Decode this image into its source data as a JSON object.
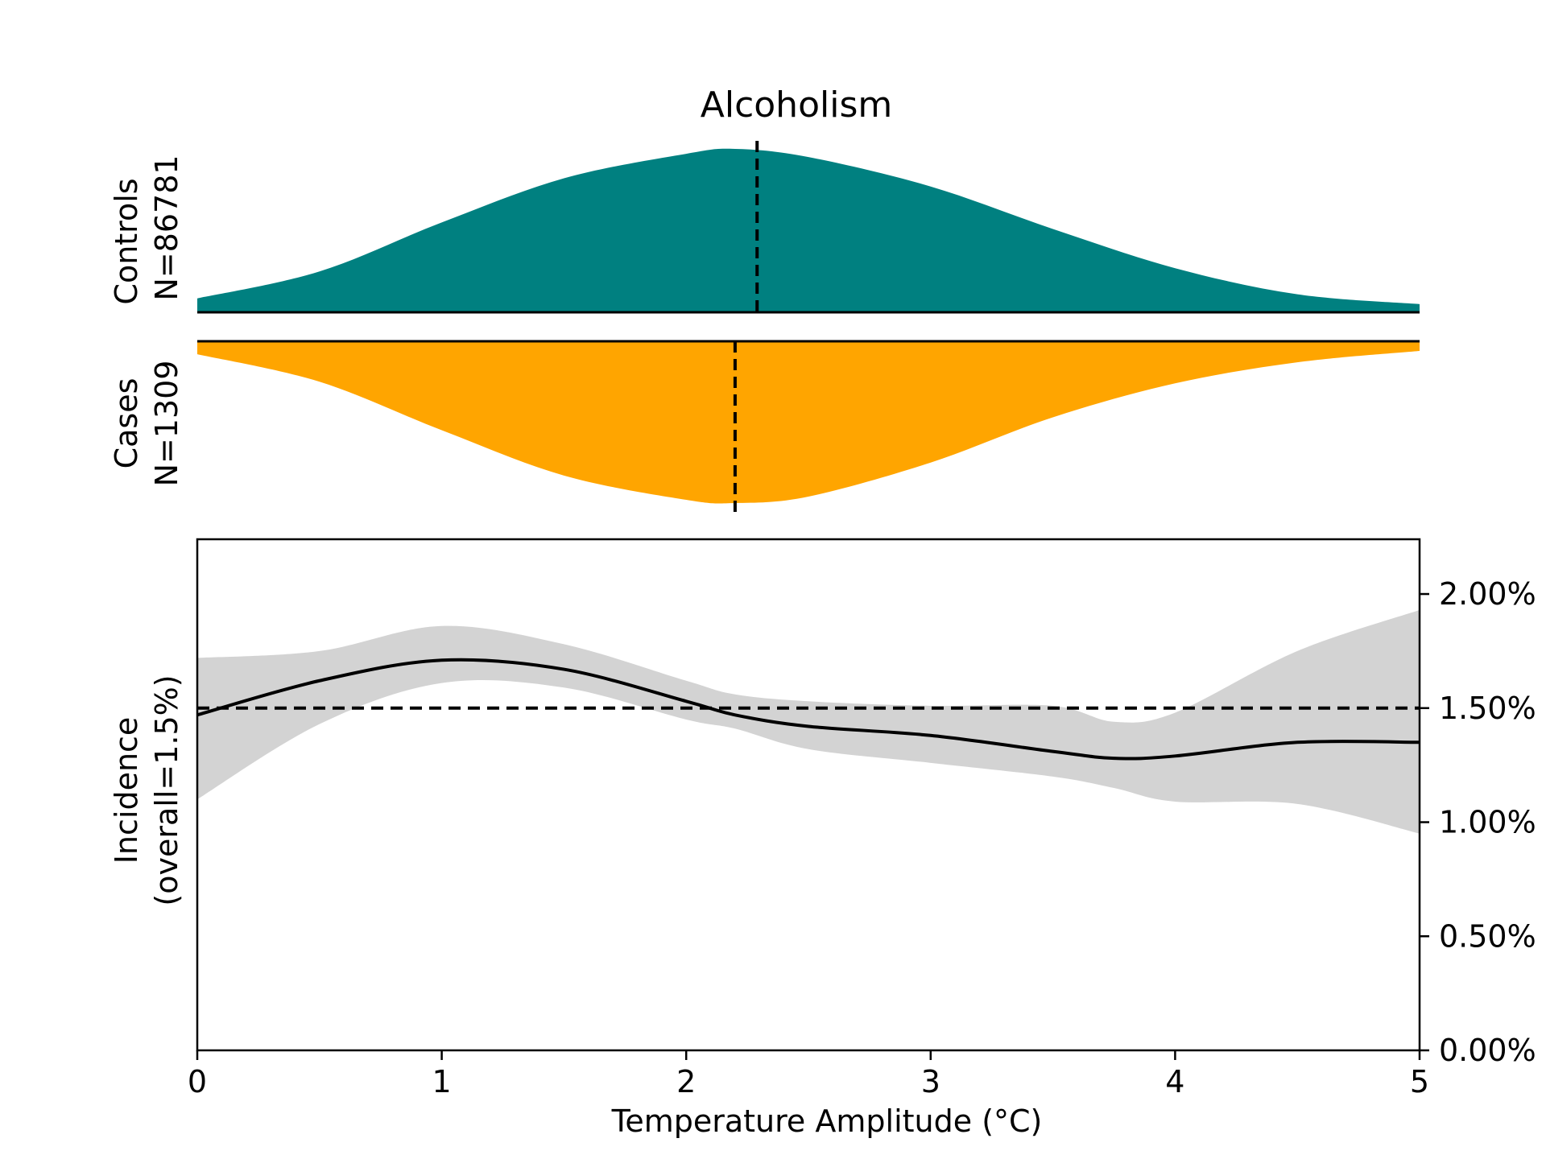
{
  "chart_data": {
    "title": "Alcoholism",
    "xlabel": "Temperature Amplitude (°C)",
    "x_ticks": [
      0,
      1,
      2,
      3,
      4,
      5
    ],
    "xlim": [
      0,
      5
    ],
    "top_panels": {
      "type": "area",
      "controls": {
        "label": "Controls",
        "n_label": "N=86781",
        "color": "#008080",
        "median": 2.29,
        "density": [
          0.085,
          0.25,
          0.55,
          0.82,
          0.97,
          1.0,
          0.95,
          0.77,
          0.51,
          0.27,
          0.11,
          0.05
        ]
      },
      "cases": {
        "label": "Cases",
        "n_label": "N=1309",
        "color": "#FFA500",
        "median": 2.2,
        "density": [
          0.08,
          0.25,
          0.55,
          0.83,
          0.98,
          1.0,
          0.96,
          0.75,
          0.47,
          0.26,
          0.13,
          0.06
        ]
      },
      "density_x": [
        0,
        0.5,
        1.0,
        1.5,
        2.0,
        2.2,
        2.5,
        3.0,
        3.5,
        4.0,
        4.5,
        5.0
      ]
    },
    "incidence": {
      "type": "line",
      "ylabel_line1": "Incidence",
      "ylabel_line2": "(overall=1.5%)",
      "ylim": [
        0,
        2.24
      ],
      "y_ticks": [
        0,
        0.5,
        1.0,
        1.5,
        2.0
      ],
      "y_tick_labels": [
        "0.00%",
        "0.50%",
        "1.00%",
        "1.50%",
        "2.00%"
      ],
      "y_axis_side": "right",
      "overall": 1.5,
      "x": [
        0,
        0.5,
        1.0,
        1.5,
        2.0,
        2.2,
        2.5,
        3.0,
        3.5,
        3.75,
        4.0,
        4.5,
        5.0
      ],
      "y": [
        1.47,
        1.62,
        1.71,
        1.67,
        1.53,
        1.47,
        1.42,
        1.38,
        1.31,
        1.28,
        1.29,
        1.35,
        1.35
      ],
      "ci_upper": [
        1.72,
        1.75,
        1.86,
        1.78,
        1.62,
        1.56,
        1.53,
        1.51,
        1.51,
        1.44,
        1.48,
        1.75,
        1.93
      ],
      "ci_lower": [
        1.1,
        1.43,
        1.61,
        1.59,
        1.45,
        1.41,
        1.32,
        1.26,
        1.2,
        1.15,
        1.09,
        1.08,
        0.95
      ],
      "ci_color": "#D3D3D3",
      "line_color": "#000000"
    }
  }
}
